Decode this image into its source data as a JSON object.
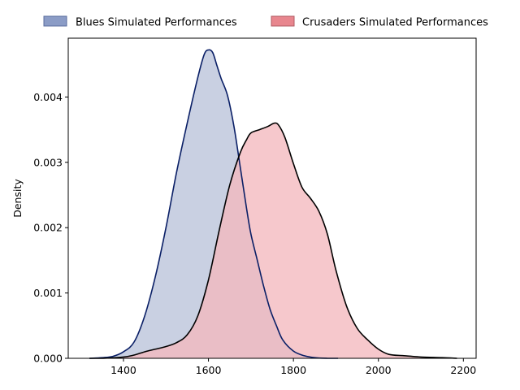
{
  "chart_data": {
    "type": "area",
    "title": "",
    "xlabel": "",
    "ylabel": "Density",
    "xlim": [
      1270,
      2230
    ],
    "ylim": [
      0,
      0.0049
    ],
    "xticks": [
      1400,
      1600,
      1800,
      2000,
      2200
    ],
    "xtick_labels": [
      "1400",
      "1600",
      "1800",
      "2000",
      "2200"
    ],
    "yticks": [
      0,
      0.001,
      0.002,
      0.003,
      0.004
    ],
    "ytick_labels": [
      "0.000",
      "0.001",
      "0.002",
      "0.003",
      "0.004"
    ],
    "grid": false,
    "legend_position": "top-center",
    "series": [
      {
        "name": "Blues Simulated Performances",
        "fill_color": "#c9d0e2",
        "line_color": "#0a1f66",
        "legend_color": "#8b9cc6",
        "x": [
          1320,
          1350,
          1375,
          1400,
          1425,
          1450,
          1475,
          1500,
          1525,
          1550,
          1575,
          1590,
          1600,
          1610,
          1620,
          1630,
          1645,
          1660,
          1675,
          1690,
          1700,
          1715,
          1730,
          1745,
          1760,
          1775,
          1800,
          1825,
          1850,
          1880,
          1905
        ],
        "y": [
          0.0,
          1e-05,
          3e-05,
          0.0001,
          0.00025,
          0.00065,
          0.00125,
          0.002,
          0.00285,
          0.0036,
          0.0043,
          0.00465,
          0.00472,
          0.00468,
          0.00448,
          0.00428,
          0.00402,
          0.00355,
          0.00292,
          0.00228,
          0.0019,
          0.0015,
          0.0011,
          0.00075,
          0.0005,
          0.00028,
          0.00011,
          4e-05,
          1e-05,
          0.0,
          0.0
        ]
      },
      {
        "name": "Crusaders Simulated Performances",
        "fill_color": "#f4b8be",
        "line_color": "#000000",
        "legend_color": "#e8868e",
        "x": [
          1320,
          1350,
          1400,
          1425,
          1450,
          1475,
          1500,
          1525,
          1550,
          1575,
          1600,
          1625,
          1650,
          1675,
          1690,
          1700,
          1720,
          1740,
          1755,
          1765,
          1780,
          1800,
          1820,
          1840,
          1860,
          1880,
          1900,
          1925,
          1950,
          1975,
          2000,
          2025,
          2060,
          2100,
          2150,
          2185
        ],
        "y": [
          0.0,
          0.0,
          2e-05,
          5e-05,
          0.0001,
          0.00014,
          0.00018,
          0.00024,
          0.00036,
          0.00065,
          0.0012,
          0.00195,
          0.00265,
          0.00315,
          0.00335,
          0.00345,
          0.0035,
          0.00355,
          0.0036,
          0.00357,
          0.00338,
          0.00298,
          0.00262,
          0.00245,
          0.00225,
          0.0019,
          0.00135,
          0.0008,
          0.00046,
          0.00028,
          0.00014,
          6e-05,
          4e-05,
          2e-05,
          1e-05,
          0.0
        ]
      }
    ]
  }
}
